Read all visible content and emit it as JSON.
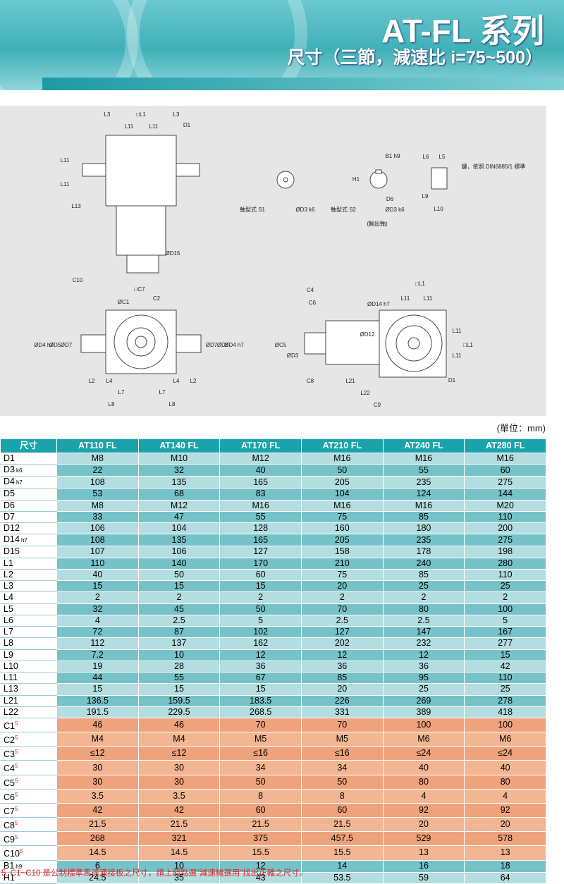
{
  "header": {
    "title": "AT-FL 系列",
    "subtitle": "尺寸（三節，減速比 i=75~500）"
  },
  "drawing": {
    "labels": [
      "L3",
      "□L1",
      "L3",
      "L11",
      "L11",
      "D1",
      "L11",
      "L11",
      "L13",
      "ØD15",
      "C10",
      "□C7",
      "軸型式 S1",
      "ØD3 k6",
      "B1 h9",
      "H1",
      "D6",
      "軸型式 S2",
      "ØD3 k6",
      "(輸出軸)",
      "L6",
      "L5",
      "鍵，依照 DIN6885/1 標準",
      "L9",
      "L10",
      "ØC1",
      "C2",
      "ØD4 h7",
      "ØD5",
      "ØD7",
      "ØD7",
      "ØD5",
      "ØD4 h7",
      "L2",
      "L4",
      "L4",
      "L2",
      "L7",
      "L7",
      "L8",
      "L8",
      "C4",
      "C6",
      "ØD14 h7",
      "□L1",
      "L11",
      "L11",
      "ØD12",
      "ØC5",
      "ØD3",
      "L11",
      "L11",
      "□L1",
      "D1",
      "C8",
      "L21",
      "L22",
      "C9"
    ]
  },
  "unit": "(單位：mm)",
  "table": {
    "columns": [
      "尺寸",
      "AT110 FL",
      "AT140 FL",
      "AT170 FL",
      "AT210 FL",
      "AT240 FL",
      "AT280 FL"
    ],
    "rows": [
      {
        "label": "D1",
        "values": [
          "M8",
          "M10",
          "M12",
          "M16",
          "M16",
          "M16"
        ]
      },
      {
        "label": "D3",
        "note": "k6",
        "values": [
          "22",
          "32",
          "40",
          "50",
          "55",
          "60"
        ]
      },
      {
        "label": "D4",
        "note": "h7",
        "values": [
          "108",
          "135",
          "165",
          "205",
          "235",
          "275"
        ]
      },
      {
        "label": "D5",
        "values": [
          "53",
          "68",
          "83",
          "104",
          "124",
          "144"
        ]
      },
      {
        "label": "D6",
        "values": [
          "M8",
          "M12",
          "M16",
          "M16",
          "M16",
          "M20"
        ]
      },
      {
        "label": "D7",
        "values": [
          "33",
          "47",
          "55",
          "75",
          "85",
          "110"
        ]
      },
      {
        "label": "D12",
        "values": [
          "106",
          "104",
          "128",
          "160",
          "180",
          "200"
        ]
      },
      {
        "label": "D14",
        "note": "h7",
        "values": [
          "108",
          "135",
          "165",
          "205",
          "235",
          "275"
        ]
      },
      {
        "label": "D15",
        "values": [
          "107",
          "106",
          "127",
          "158",
          "178",
          "198"
        ]
      },
      {
        "label": "L1",
        "values": [
          "110",
          "140",
          "170",
          "210",
          "240",
          "280"
        ]
      },
      {
        "label": "L2",
        "values": [
          "40",
          "50",
          "60",
          "75",
          "85",
          "110"
        ]
      },
      {
        "label": "L3",
        "values": [
          "15",
          "15",
          "15",
          "20",
          "25",
          "25"
        ]
      },
      {
        "label": "L4",
        "values": [
          "2",
          "2",
          "2",
          "2",
          "2",
          "2"
        ]
      },
      {
        "label": "L5",
        "values": [
          "32",
          "45",
          "50",
          "70",
          "80",
          "100"
        ]
      },
      {
        "label": "L6",
        "values": [
          "4",
          "2.5",
          "5",
          "2.5",
          "2.5",
          "5"
        ]
      },
      {
        "label": "L7",
        "values": [
          "72",
          "87",
          "102",
          "127",
          "147",
          "167"
        ]
      },
      {
        "label": "L8",
        "values": [
          "112",
          "137",
          "162",
          "202",
          "232",
          "277"
        ]
      },
      {
        "label": "L9",
        "values": [
          "7.2",
          "10",
          "12",
          "12",
          "12",
          "15"
        ]
      },
      {
        "label": "L10",
        "values": [
          "19",
          "28",
          "36",
          "36",
          "36",
          "42"
        ]
      },
      {
        "label": "L11",
        "values": [
          "44",
          "55",
          "67",
          "85",
          "95",
          "110"
        ]
      },
      {
        "label": "L13",
        "values": [
          "15",
          "15",
          "15",
          "20",
          "25",
          "25"
        ]
      },
      {
        "label": "L21",
        "values": [
          "136.5",
          "159.5",
          "183.5",
          "226",
          "269",
          "278"
        ]
      },
      {
        "label": "L22",
        "values": [
          "191.5",
          "229.5",
          "268.5",
          "331",
          "389",
          "418"
        ]
      },
      {
        "label": "C1",
        "sup": "5",
        "values": [
          "46",
          "46",
          "70",
          "70",
          "100",
          "100"
        ]
      },
      {
        "label": "C2",
        "sup": "5",
        "values": [
          "M4",
          "M4",
          "M5",
          "M5",
          "M6",
          "M6"
        ]
      },
      {
        "label": "C3",
        "sup": "5",
        "values": [
          "≤12",
          "≤12",
          "≤16",
          "≤16",
          "≤24",
          "≤24"
        ]
      },
      {
        "label": "C4",
        "sup": "5",
        "values": [
          "30",
          "30",
          "34",
          "34",
          "40",
          "40"
        ]
      },
      {
        "label": "C5",
        "sup": "5",
        "values": [
          "30",
          "30",
          "50",
          "50",
          "80",
          "80"
        ]
      },
      {
        "label": "C6",
        "sup": "5",
        "values": [
          "3.5",
          "3.5",
          "8",
          "8",
          "4",
          "4"
        ]
      },
      {
        "label": "C7",
        "sup": "5",
        "values": [
          "42",
          "42",
          "60",
          "60",
          "92",
          "92"
        ]
      },
      {
        "label": "C8",
        "sup": "5",
        "values": [
          "21.5",
          "21.5",
          "21.5",
          "21.5",
          "20",
          "20"
        ]
      },
      {
        "label": "C9",
        "sup": "5",
        "values": [
          "268",
          "321",
          "375",
          "457.5",
          "529",
          "578"
        ]
      },
      {
        "label": "C10",
        "sup": "5",
        "values": [
          "14.5",
          "14.5",
          "15.5",
          "15.5",
          "13",
          "13"
        ]
      },
      {
        "label": "B1",
        "note": "h9",
        "values": [
          "6",
          "10",
          "12",
          "14",
          "16",
          "18"
        ]
      },
      {
        "label": "H1",
        "values": [
          "24.5",
          "35",
          "43",
          "53.5",
          "59",
          "64"
        ]
      }
    ]
  },
  "footnote": "5. C1~C10 是公制標準馬達連接板之尺寸，請上網點選”減速機選用”找出正確之尺寸。"
}
